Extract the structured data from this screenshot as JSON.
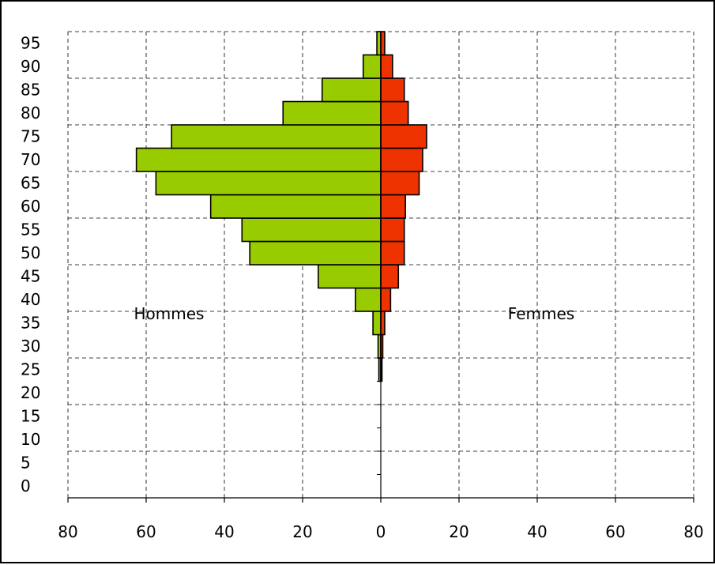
{
  "chart_data": {
    "type": "bar",
    "orientation": "horizontal-butterfly",
    "categories": [
      "0",
      "5",
      "10",
      "15",
      "20",
      "25",
      "30",
      "35",
      "40",
      "45",
      "50",
      "55",
      "60",
      "65",
      "70",
      "75",
      "80",
      "85",
      "90",
      "95"
    ],
    "series": [
      {
        "name": "Hommes",
        "side": "left",
        "color": "#99cc00",
        "values": [
          0,
          0,
          0,
          0,
          0,
          0.5,
          0.7,
          2,
          6.5,
          16,
          33.5,
          35.5,
          43.5,
          57.5,
          62.5,
          53.5,
          25,
          15,
          4.5,
          1
        ]
      },
      {
        "name": "Femmes",
        "side": "right",
        "color": "#ee3300",
        "values": [
          0,
          0,
          0,
          0,
          0,
          0.3,
          0.5,
          1,
          2.5,
          4.5,
          6,
          6,
          6.3,
          9.8,
          10.7,
          11.7,
          7,
          6,
          3,
          1
        ]
      }
    ],
    "x_tick_labels": [
      "80",
      "60",
      "40",
      "20",
      "0",
      "20",
      "40",
      "60",
      "80"
    ],
    "y_tick_labels": [
      "0",
      "5",
      "10",
      "15",
      "20",
      "25",
      "30",
      "35",
      "40",
      "45",
      "50",
      "55",
      "60",
      "65",
      "70",
      "75",
      "80",
      "85",
      "90",
      "95"
    ],
    "xlim": [
      -80,
      80
    ],
    "grid": true,
    "grid_style": "dashed",
    "side_labels": {
      "left": "Hommes",
      "right": "Femmes"
    }
  }
}
